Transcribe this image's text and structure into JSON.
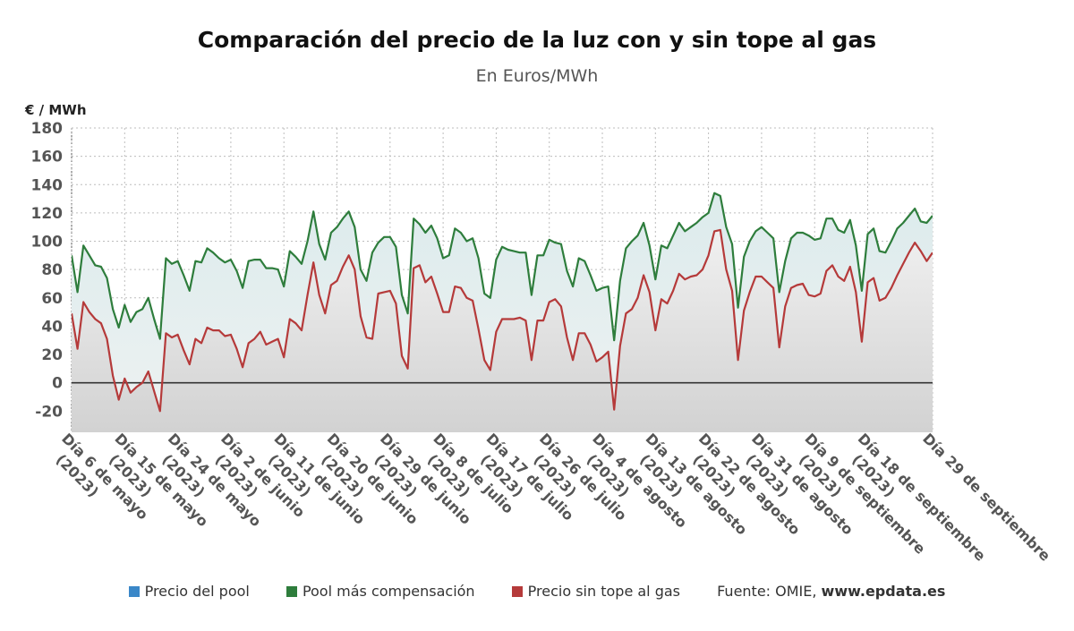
{
  "title": "Comparación del precio de la luz con y sin tope al gas",
  "subtitle": "En Euros/MWh",
  "source_label": "Fuente: OMIE,",
  "source_site": "www.epdata.es",
  "colors": {
    "pool": "#3a87c8",
    "compensacion": "#2e7d3c",
    "sin_tope": "#b53a3a"
  },
  "chart_data": {
    "type": "line",
    "title": "Comparación del precio de la luz con y sin tope al gas",
    "subtitle": "En Euros/MWh",
    "ylabel": "€ / MWh",
    "ylim": [
      -35,
      180
    ],
    "yticks": [
      -20,
      0,
      20,
      40,
      60,
      80,
      100,
      120,
      140,
      160,
      180
    ],
    "grid": true,
    "legend_position": "bottom",
    "x_start": "Día 6 de mayo (2023)",
    "x_end": "Día 29 de septiembre",
    "x_ticks": [
      {
        "line1": "Día 6 de mayo",
        "line2": "(2023)",
        "day": 0
      },
      {
        "line1": "Día 15 de mayo",
        "line2": "(2023)",
        "day": 9
      },
      {
        "line1": "Día 24 de mayo",
        "line2": "(2023)",
        "day": 18
      },
      {
        "line1": "Día 2 de junio",
        "line2": "(2023)",
        "day": 27
      },
      {
        "line1": "Día 11 de junio",
        "line2": "(2023)",
        "day": 36
      },
      {
        "line1": "Día 20 de junio",
        "line2": "(2023)",
        "day": 45
      },
      {
        "line1": "Día 29 de junio",
        "line2": "(2023)",
        "day": 54
      },
      {
        "line1": "Día 8 de julio",
        "line2": "(2023)",
        "day": 63
      },
      {
        "line1": "Día 17 de julio",
        "line2": "(2023)",
        "day": 72
      },
      {
        "line1": "Día 26 de julio",
        "line2": "(2023)",
        "day": 81
      },
      {
        "line1": "Día 4 de agosto",
        "line2": "(2023)",
        "day": 90
      },
      {
        "line1": "Día 13 de agosto",
        "line2": "(2023)",
        "day": 99
      },
      {
        "line1": "Día 22 de agosto",
        "line2": "(2023)",
        "day": 108
      },
      {
        "line1": "Día 31 de agosto",
        "line2": "(2023)",
        "day": 117
      },
      {
        "line1": "Día 9 de septiembre",
        "line2": "(2023)",
        "day": 126
      },
      {
        "line1": "Día 18 de septiembre",
        "line2": "(2023)",
        "day": 135
      },
      {
        "line1": "Día 29 de septiembre",
        "line2": "",
        "day": 146
      }
    ],
    "series": [
      {
        "name": "Precio del pool",
        "color": "#3a87c8",
        "values": []
      },
      {
        "name": "Pool más compensación",
        "color": "#2e7d3c",
        "values": [
          90,
          64,
          97,
          90,
          83,
          82,
          74,
          52,
          39,
          55,
          43,
          50,
          52,
          60,
          45,
          31,
          88,
          84,
          86,
          76,
          65,
          86,
          85,
          95,
          92,
          88,
          85,
          87,
          79,
          67,
          86,
          87,
          87,
          81,
          81,
          80,
          68,
          93,
          89,
          84,
          100,
          121,
          98,
          87,
          106,
          110,
          116,
          121,
          110,
          80,
          72,
          92,
          99,
          103,
          103,
          96,
          62,
          49,
          116,
          112,
          106,
          111,
          102,
          88,
          90,
          109,
          106,
          100,
          102,
          88,
          63,
          60,
          87,
          96,
          94,
          93,
          92,
          92,
          62,
          90,
          90,
          101,
          99,
          98,
          79,
          68,
          88,
          86,
          76,
          65,
          67,
          68,
          30,
          72,
          95,
          100,
          104,
          113,
          97,
          73,
          97,
          95,
          104,
          113,
          107,
          110,
          113,
          117,
          120,
          134,
          132,
          110,
          98,
          53,
          89,
          100,
          107,
          110,
          106,
          102,
          64,
          86,
          102,
          106,
          106,
          104,
          101,
          102,
          116,
          116,
          108,
          106,
          115,
          97,
          65,
          105,
          109,
          93,
          92,
          100,
          109,
          113,
          118,
          123,
          114,
          113,
          118
        ]
      },
      {
        "name": "Precio sin tope al gas",
        "color": "#b53a3a",
        "values": [
          49,
          24,
          57,
          50,
          45,
          42,
          31,
          5,
          -12,
          3,
          -7,
          -3,
          0,
          8,
          -6,
          -20,
          35,
          32,
          34,
          23,
          13,
          31,
          28,
          39,
          37,
          37,
          33,
          34,
          24,
          11,
          28,
          31,
          36,
          27,
          29,
          31,
          18,
          45,
          42,
          37,
          62,
          85,
          62,
          49,
          69,
          72,
          82,
          90,
          80,
          47,
          32,
          31,
          63,
          64,
          65,
          56,
          19,
          10,
          81,
          83,
          71,
          75,
          63,
          50,
          50,
          68,
          67,
          60,
          58,
          38,
          16,
          9,
          36,
          45,
          45,
          45,
          46,
          44,
          16,
          44,
          44,
          57,
          59,
          54,
          32,
          16,
          35,
          35,
          27,
          15,
          18,
          22,
          -19,
          26,
          49,
          52,
          60,
          76,
          64,
          37,
          59,
          56,
          65,
          77,
          73,
          75,
          76,
          80,
          90,
          107,
          108,
          80,
          65,
          16,
          51,
          64,
          75,
          75,
          71,
          67,
          25,
          54,
          67,
          69,
          70,
          62,
          61,
          63,
          79,
          83,
          75,
          72,
          82,
          64,
          29,
          71,
          74,
          58,
          60,
          67,
          76,
          84,
          92,
          99,
          93,
          86,
          92
        ]
      }
    ]
  }
}
